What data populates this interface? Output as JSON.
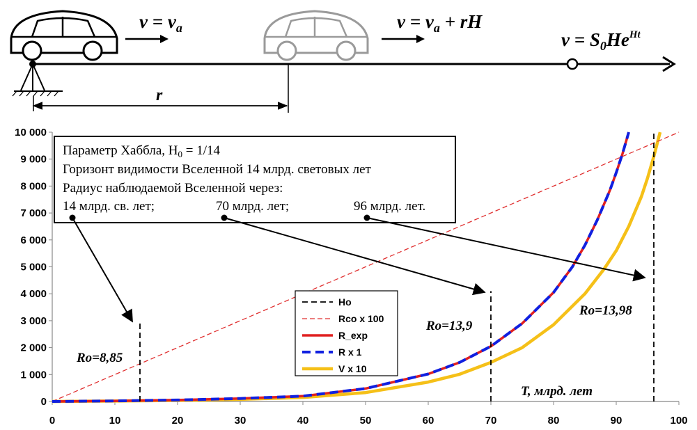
{
  "diagram": {
    "formula_left_main": "v = v",
    "formula_left_sub": "a",
    "formula_mid_main": "v = v",
    "formula_mid_sub": "a",
    "formula_mid_tail": " + rH",
    "formula_right_main": "v = S",
    "formula_right_sub": "0",
    "formula_right_tail": "He",
    "formula_right_sup": "Ht",
    "distance_label": "r"
  },
  "info_box": {
    "line1_prefix": "Параметр  Хаббла, H",
    "line1_sub": "0",
    "line1_suffix": " = 1/14",
    "line2": "Горизонт видимости Вселенной 14 млрд. световых лет",
    "line3": "Радиус наблюдаемой Вселенной через:",
    "label_14": "14 млрд. св. лет;",
    "label_70": "70 млрд. лет;",
    "label_96": "96 млрд. лет."
  },
  "annotations": {
    "ro_1": "Ro=8,85",
    "ro_2": "Ro=13,9",
    "ro_3": "Ro=13,98",
    "x_title": "T, млрд. лет"
  },
  "chart_data": {
    "type": "line",
    "title": "",
    "xlabel": "T, млрд. лет",
    "ylabel": "",
    "xlim": [
      0,
      100
    ],
    "ylim": [
      0,
      10000
    ],
    "x_ticks": [
      "0",
      "10",
      "20",
      "30",
      "40",
      "50",
      "60",
      "70",
      "80",
      "90",
      "100"
    ],
    "y_ticks": [
      "0",
      "1 000",
      "2 000",
      "3 000",
      "4 000",
      "5 000",
      "6 000",
      "7 000",
      "8 000",
      "9 000",
      "10 000"
    ],
    "legend_position": "center",
    "series": [
      {
        "name": "Ho",
        "color": "#000000",
        "style": "dashed",
        "segments": [
          {
            "x": [
              14,
              14
            ],
            "y": [
              0,
              2900
            ]
          },
          {
            "x": [
              70,
              70
            ],
            "y": [
              0,
              4100
            ]
          },
          {
            "x": [
              96,
              96
            ],
            "y": [
              0,
              10000
            ]
          }
        ]
      },
      {
        "name": "Rco x 100",
        "color": "#e03030",
        "style": "dashed-thin",
        "x": [
          0,
          10,
          20,
          30,
          40,
          50,
          60,
          70,
          80,
          90,
          100
        ],
        "y": [
          0,
          1000,
          2000,
          3000,
          4000,
          5000,
          6000,
          7000,
          8000,
          9000,
          10000
        ]
      },
      {
        "name": "R_exp",
        "color": "#e02020",
        "style": "solid",
        "x": [
          0,
          10,
          20,
          30,
          40,
          50,
          60,
          65,
          70,
          75,
          80,
          83,
          85,
          87,
          89,
          90,
          91,
          92
        ],
        "y": [
          0,
          20,
          55,
          110,
          200,
          480,
          1020,
          1450,
          2050,
          2900,
          4050,
          5000,
          5800,
          6750,
          7850,
          8500,
          9200,
          10000
        ]
      },
      {
        "name": "R x 1",
        "color": "#1020e0",
        "style": "dashed-thick",
        "x": [
          0,
          10,
          20,
          30,
          40,
          50,
          60,
          65,
          70,
          75,
          80,
          83,
          85,
          87,
          89,
          90,
          91,
          92
        ],
        "y": [
          0,
          20,
          55,
          110,
          200,
          480,
          1020,
          1450,
          2050,
          2900,
          4050,
          5000,
          5800,
          6750,
          7850,
          8500,
          9200,
          10000
        ]
      },
      {
        "name": "V x 10",
        "color": "#f5c018",
        "style": "solid-thick",
        "x": [
          0,
          10,
          20,
          30,
          40,
          50,
          60,
          65,
          70,
          75,
          80,
          85,
          88,
          90,
          92,
          94,
          95,
          96,
          97
        ],
        "y": [
          0,
          15,
          40,
          80,
          150,
          330,
          720,
          1010,
          1450,
          2000,
          2850,
          4000,
          4900,
          5600,
          6500,
          7600,
          8300,
          9100,
          10000
        ]
      }
    ]
  }
}
